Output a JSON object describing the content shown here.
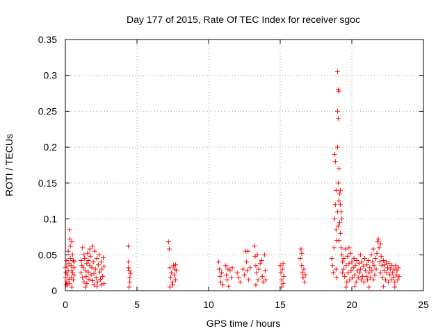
{
  "chart_data": {
    "type": "scatter",
    "title": "Day 177 of 2015, Rate Of TEC Index for receiver sgoc",
    "xlabel": "GPS time / hours",
    "ylabel": "ROTI / TECUs",
    "xlim": [
      0,
      25
    ],
    "ylim": [
      0,
      0.35
    ],
    "x_ticks": [
      0,
      5,
      10,
      15,
      20,
      25
    ],
    "x_tick_labels": [
      "0",
      "5",
      "10",
      "15",
      "20",
      "25"
    ],
    "y_ticks": [
      0,
      0.05,
      0.1,
      0.15,
      0.2,
      0.25,
      0.3,
      0.35
    ],
    "y_tick_labels": [
      "0",
      "0.05",
      "0.1",
      "0.15",
      "0.2",
      "0.25",
      "0.3",
      "0.35"
    ],
    "grid": true,
    "marker": "+",
    "marker_color": "#ff0000",
    "series": [
      {
        "points": [
          [
            0.0,
            0.032
          ],
          [
            0.0,
            0.018
          ],
          [
            0.05,
            0.025
          ],
          [
            0.1,
            0.012
          ],
          [
            0.1,
            0.034
          ],
          [
            0.15,
            0.022
          ],
          [
            0.15,
            0.008
          ],
          [
            0.2,
            0.028
          ],
          [
            0.25,
            0.016
          ],
          [
            0.25,
            0.038
          ],
          [
            0.3,
            0.085
          ],
          [
            0.3,
            0.072
          ],
          [
            0.35,
            0.062
          ],
          [
            0.35,
            0.045
          ],
          [
            0.4,
            0.035
          ],
          [
            0.4,
            0.018
          ],
          [
            0.45,
            0.068
          ],
          [
            0.45,
            0.028
          ],
          [
            0.5,
            0.05
          ],
          [
            0.5,
            0.025
          ],
          [
            0.55,
            0.042
          ],
          [
            0.55,
            0.015
          ],
          [
            0.6,
            0.032
          ],
          [
            0.6,
            0.022
          ],
          [
            0.3,
            0.01
          ],
          [
            0.2,
            0.055
          ],
          [
            0.1,
            0.042
          ],
          [
            0.05,
            0.008
          ],
          [
            0.45,
            0.005
          ],
          [
            0.6,
            0.04
          ],
          [
            1.1,
            0.025
          ],
          [
            1.1,
            0.042
          ],
          [
            1.2,
            0.018
          ],
          [
            1.2,
            0.06
          ],
          [
            1.25,
            0.032
          ],
          [
            1.3,
            0.012
          ],
          [
            1.35,
            0.045
          ],
          [
            1.4,
            0.028
          ],
          [
            1.45,
            0.02
          ],
          [
            1.5,
            0.038
          ],
          [
            1.5,
            0.01
          ],
          [
            1.55,
            0.052
          ],
          [
            1.6,
            0.026
          ],
          [
            1.65,
            0.016
          ],
          [
            1.7,
            0.035
          ],
          [
            1.75,
            0.048
          ],
          [
            1.8,
            0.022
          ],
          [
            1.85,
            0.032
          ],
          [
            1.9,
            0.062
          ],
          [
            1.9,
            0.014
          ],
          [
            1.95,
            0.04
          ],
          [
            2.0,
            0.024
          ],
          [
            2.05,
            0.055
          ],
          [
            2.1,
            0.03
          ],
          [
            2.15,
            0.018
          ],
          [
            2.2,
            0.045
          ],
          [
            2.25,
            0.012
          ],
          [
            2.3,
            0.036
          ],
          [
            2.35,
            0.05
          ],
          [
            2.4,
            0.026
          ],
          [
            2.45,
            0.016
          ],
          [
            2.5,
            0.04
          ],
          [
            2.55,
            0.03
          ],
          [
            2.6,
            0.02
          ],
          [
            2.65,
            0.046
          ],
          [
            2.7,
            0.01
          ],
          [
            2.7,
            0.034
          ],
          [
            1.3,
            0.05
          ],
          [
            1.7,
            0.058
          ],
          [
            2.0,
            0.008
          ],
          [
            1.4,
            0.005
          ],
          [
            2.2,
            0.006
          ],
          [
            1.6,
            0.042
          ],
          [
            2.5,
            0.008
          ],
          [
            1.15,
            0.035
          ],
          [
            4.4,
            0.062
          ],
          [
            4.4,
            0.04
          ],
          [
            4.45,
            0.028
          ],
          [
            4.5,
            0.018
          ],
          [
            4.5,
            0.012
          ],
          [
            4.55,
            0.024
          ],
          [
            4.45,
            0.005
          ],
          [
            4.4,
            0.032
          ],
          [
            7.2,
            0.068
          ],
          [
            7.25,
            0.058
          ],
          [
            7.3,
            0.032
          ],
          [
            7.35,
            0.018
          ],
          [
            7.4,
            0.025
          ],
          [
            7.45,
            0.012
          ],
          [
            7.55,
            0.035
          ],
          [
            7.6,
            0.022
          ],
          [
            7.65,
            0.03
          ],
          [
            7.7,
            0.015
          ],
          [
            7.75,
            0.028
          ],
          [
            7.5,
            0.008
          ],
          [
            7.3,
            0.005
          ],
          [
            7.7,
            0.036
          ],
          [
            10.7,
            0.04
          ],
          [
            10.75,
            0.03
          ],
          [
            10.8,
            0.02
          ],
          [
            10.85,
            0.012
          ],
          [
            10.9,
            0.025
          ],
          [
            11.2,
            0.035
          ],
          [
            11.25,
            0.022
          ],
          [
            11.3,
            0.015
          ],
          [
            11.35,
            0.03
          ],
          [
            11.5,
            0.028
          ],
          [
            11.6,
            0.018
          ],
          [
            11.65,
            0.032
          ],
          [
            11.0,
            0.008
          ],
          [
            11.4,
            0.006
          ],
          [
            12.0,
            0.025
          ],
          [
            12.1,
            0.018
          ],
          [
            12.2,
            0.012
          ],
          [
            12.4,
            0.03
          ],
          [
            12.5,
            0.022
          ],
          [
            12.6,
            0.055
          ],
          [
            12.65,
            0.04
          ],
          [
            12.7,
            0.028
          ],
          [
            12.75,
            0.055
          ],
          [
            12.8,
            0.015
          ],
          [
            12.9,
            0.032
          ],
          [
            13.2,
            0.062
          ],
          [
            13.25,
            0.048
          ],
          [
            13.3,
            0.035
          ],
          [
            13.35,
            0.025
          ],
          [
            13.4,
            0.05
          ],
          [
            13.45,
            0.015
          ],
          [
            13.5,
            0.03
          ],
          [
            13.6,
            0.038
          ],
          [
            13.7,
            0.042
          ],
          [
            13.75,
            0.02
          ],
          [
            13.8,
            0.012
          ],
          [
            13.9,
            0.05
          ],
          [
            13.95,
            0.028
          ],
          [
            14.0,
            0.015
          ],
          [
            13.3,
            0.008
          ],
          [
            15.0,
            0.035
          ],
          [
            15.05,
            0.025
          ],
          [
            15.1,
            0.015
          ],
          [
            15.15,
            0.03
          ],
          [
            15.2,
            0.01
          ],
          [
            15.25,
            0.02
          ],
          [
            15.1,
            0.005
          ],
          [
            15.2,
            0.038
          ],
          [
            16.4,
            0.045
          ],
          [
            16.45,
            0.058
          ],
          [
            16.5,
            0.035
          ],
          [
            16.55,
            0.025
          ],
          [
            16.6,
            0.018
          ],
          [
            16.65,
            0.03
          ],
          [
            16.7,
            0.012
          ],
          [
            16.75,
            0.022
          ],
          [
            16.5,
            0.052
          ],
          [
            18.6,
            0.045
          ],
          [
            18.65,
            0.035
          ],
          [
            18.7,
            0.025
          ],
          [
            18.75,
            0.06
          ],
          [
            18.8,
            0.1
          ],
          [
            18.8,
            0.19
          ],
          [
            18.85,
            0.18
          ],
          [
            18.85,
            0.12
          ],
          [
            18.9,
            0.085
          ],
          [
            18.9,
            0.03
          ],
          [
            18.95,
            0.018
          ],
          [
            19.0,
            0.305
          ],
          [
            19.0,
            0.25
          ],
          [
            19.0,
            0.2
          ],
          [
            19.05,
            0.28
          ],
          [
            19.05,
            0.24
          ],
          [
            19.05,
            0.15
          ],
          [
            19.1,
            0.278
          ],
          [
            19.1,
            0.17
          ],
          [
            19.1,
            0.125
          ],
          [
            19.1,
            0.07
          ],
          [
            19.15,
            0.135
          ],
          [
            19.15,
            0.095
          ],
          [
            19.2,
            0.14
          ],
          [
            19.2,
            0.08
          ],
          [
            19.25,
            0.06
          ],
          [
            19.25,
            0.11
          ],
          [
            19.3,
            0.05
          ],
          [
            19.3,
            0.1
          ],
          [
            19.35,
            0.04
          ],
          [
            19.35,
            0.025
          ],
          [
            19.0,
            0.11
          ],
          [
            18.9,
            0.14
          ],
          [
            19.05,
            0.09
          ],
          [
            18.95,
            0.07
          ],
          [
            19.2,
            0.12
          ],
          [
            19.4,
            0.03
          ],
          [
            19.45,
            0.045
          ],
          [
            19.5,
            0.02
          ],
          [
            19.55,
            0.058
          ],
          [
            19.6,
            0.035
          ],
          [
            19.65,
            0.012
          ],
          [
            19.7,
            0.048
          ],
          [
            19.75,
            0.025
          ],
          [
            19.8,
            0.038
          ],
          [
            19.85,
            0.015
          ],
          [
            19.9,
            0.052
          ],
          [
            19.95,
            0.028
          ],
          [
            20.0,
            0.04
          ],
          [
            20.05,
            0.018
          ],
          [
            20.1,
            0.032
          ],
          [
            20.15,
            0.045
          ],
          [
            20.2,
            0.022
          ],
          [
            20.25,
            0.035
          ],
          [
            20.3,
            0.012
          ],
          [
            20.35,
            0.042
          ],
          [
            20.4,
            0.028
          ],
          [
            20.45,
            0.018
          ],
          [
            20.5,
            0.038
          ],
          [
            20.55,
            0.025
          ],
          [
            20.6,
            0.03
          ],
          [
            20.65,
            0.015
          ],
          [
            20.7,
            0.04
          ],
          [
            20.75,
            0.02
          ],
          [
            20.8,
            0.034
          ],
          [
            20.85,
            0.012
          ],
          [
            20.9,
            0.045
          ],
          [
            20.95,
            0.028
          ],
          [
            21.0,
            0.02
          ],
          [
            21.05,
            0.036
          ],
          [
            21.1,
            0.015
          ],
          [
            21.15,
            0.042
          ],
          [
            21.2,
            0.025
          ],
          [
            21.25,
            0.032
          ],
          [
            21.3,
            0.018
          ],
          [
            21.35,
            0.05
          ],
          [
            21.4,
            0.028
          ],
          [
            21.45,
            0.04
          ],
          [
            21.5,
            0.015
          ],
          [
            21.55,
            0.035
          ],
          [
            21.6,
            0.022
          ],
          [
            21.65,
            0.045
          ],
          [
            21.7,
            0.03
          ],
          [
            21.75,
            0.052
          ],
          [
            21.8,
            0.068
          ],
          [
            21.85,
            0.072
          ],
          [
            21.9,
            0.06
          ],
          [
            21.95,
            0.04
          ],
          [
            22.0,
            0.065
          ],
          [
            22.0,
            0.025
          ],
          [
            22.05,
            0.048
          ],
          [
            22.1,
            0.035
          ],
          [
            22.15,
            0.018
          ],
          [
            22.2,
            0.042
          ],
          [
            22.25,
            0.028
          ],
          [
            22.3,
            0.036
          ],
          [
            22.35,
            0.015
          ],
          [
            22.4,
            0.04
          ],
          [
            22.45,
            0.025
          ],
          [
            22.5,
            0.032
          ],
          [
            22.55,
            0.012
          ],
          [
            22.6,
            0.038
          ],
          [
            22.65,
            0.022
          ],
          [
            22.7,
            0.03
          ],
          [
            22.75,
            0.015
          ],
          [
            22.8,
            0.035
          ],
          [
            22.85,
            0.025
          ],
          [
            22.9,
            0.018
          ],
          [
            22.95,
            0.03
          ],
          [
            23.0,
            0.012
          ],
          [
            23.05,
            0.035
          ],
          [
            23.1,
            0.022
          ],
          [
            23.15,
            0.028
          ],
          [
            23.2,
            0.015
          ],
          [
            23.25,
            0.032
          ],
          [
            23.3,
            0.02
          ],
          [
            19.6,
            0.005
          ],
          [
            20.2,
            0.006
          ],
          [
            21.2,
            0.005
          ],
          [
            22.2,
            0.006
          ],
          [
            23.0,
            0.005
          ],
          [
            19.8,
            0.06
          ],
          [
            20.6,
            0.05
          ],
          [
            21.5,
            0.058
          ]
        ]
      }
    ]
  }
}
